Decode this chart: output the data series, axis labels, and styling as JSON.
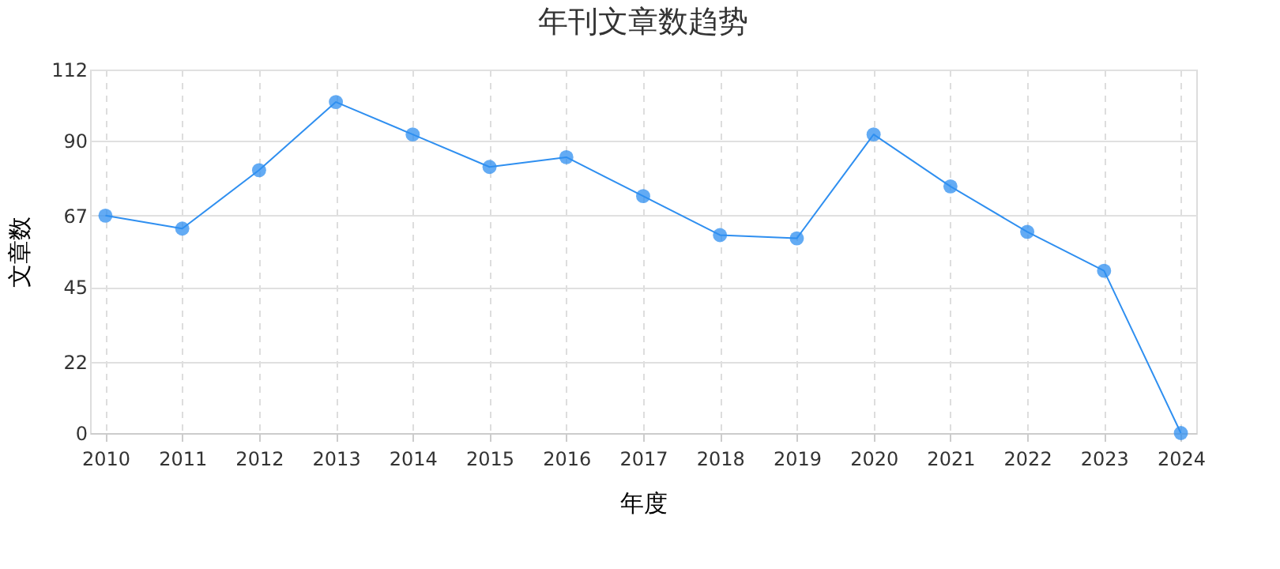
{
  "chart_data": {
    "type": "line",
    "title": "年刊文章数趋势",
    "xlabel": "年度",
    "ylabel": "文章数",
    "categories": [
      "2010",
      "2011",
      "2012",
      "2013",
      "2014",
      "2015",
      "2016",
      "2017",
      "2018",
      "2019",
      "2020",
      "2021",
      "2022",
      "2023",
      "2024"
    ],
    "series": [
      {
        "color": "#2f8ff0",
        "values": [
          67,
          63,
          81,
          102,
          92,
          82,
          85,
          73,
          61,
          60,
          92,
          76,
          62,
          50,
          0
        ]
      }
    ],
    "ylim": [
      0,
      112
    ],
    "yticks": [
      0,
      22,
      45,
      67,
      90,
      112
    ],
    "grid": true,
    "marker": "circle",
    "line_style": "solid"
  }
}
